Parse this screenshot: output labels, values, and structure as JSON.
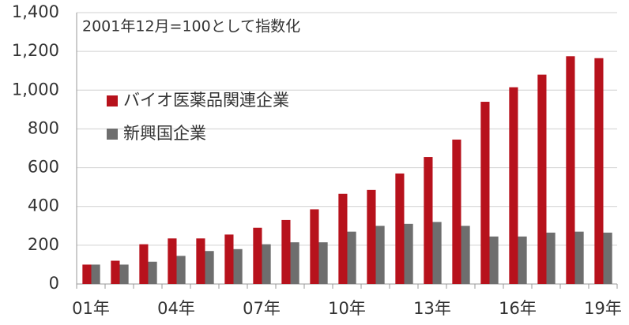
{
  "chart_data": {
    "type": "bar",
    "annotation": "2001年12月=100として指数化",
    "categories": [
      "01年",
      null,
      null,
      "04年",
      null,
      null,
      "07年",
      null,
      null,
      "10年",
      null,
      null,
      "13年",
      null,
      null,
      "16年",
      null,
      null,
      "19年"
    ],
    "series": [
      {
        "name": "バイオ医薬品関連企業",
        "color": "#b7121c",
        "values": [
          100,
          120,
          205,
          235,
          235,
          255,
          290,
          330,
          385,
          465,
          485,
          570,
          655,
          745,
          940,
          1015,
          1080,
          1175,
          1165
        ]
      },
      {
        "name": "新興国企業",
        "color": "#6e6e6e",
        "values": [
          100,
          100,
          115,
          145,
          170,
          180,
          205,
          215,
          215,
          270,
          300,
          310,
          320,
          300,
          245,
          245,
          265,
          270,
          265
        ]
      }
    ],
    "ylim": [
      0,
      1400
    ],
    "yticks": [
      0,
      200,
      400,
      600,
      800,
      {
        "value": 1000,
        "label": "1,000"
      },
      {
        "value": 1200,
        "label": "1,200"
      },
      {
        "value": 1400,
        "label": "1,400"
      }
    ],
    "grid": true
  }
}
